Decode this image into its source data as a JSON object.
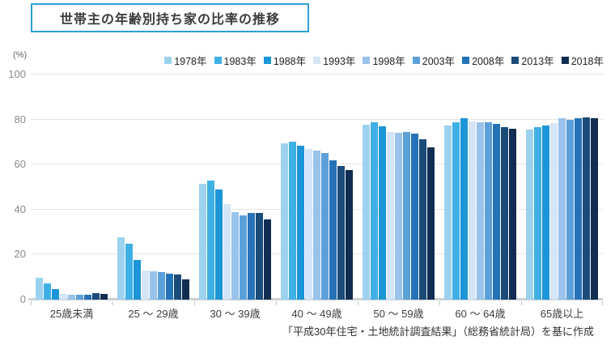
{
  "header": {
    "title": "世帯主の年齢別持ち家の比率の推移"
  },
  "axis": {
    "unit_label": "(%)"
  },
  "footer": {
    "source_text": "「平成30年住宅・土地統計調査結果」（総務省統計局）を基に作成"
  },
  "colors": {
    "title_border": "#2e9fd9",
    "gridline": "#e4e4e4",
    "axis_line": "#ccd1d6",
    "tick_label": "#8a8a8a",
    "text": "#333333"
  },
  "chart_data": {
    "type": "bar",
    "title": "世帯主の年齢別持ち家の比率の推移",
    "xlabel": "",
    "ylabel": "(%)",
    "ylim": [
      0,
      100
    ],
    "yticks": [
      0,
      20,
      40,
      60,
      80,
      100
    ],
    "grid": true,
    "legend_position": "top-right",
    "categories": [
      "25歳未満",
      "25 ～ 29歳",
      "30 ～ 39歳",
      "40 ～ 49歳",
      "50 ～ 59歳",
      "60 ～ 64歳",
      "65歳以上"
    ],
    "series": [
      {
        "name": "1978年",
        "color": "#9dd2ef",
        "values": [
          9.6,
          27.6,
          51.5,
          69.5,
          77.8,
          77.5,
          75.7
        ]
      },
      {
        "name": "1983年",
        "color": "#3fb0e5",
        "values": [
          7.2,
          25.0,
          53.0,
          70.0,
          78.8,
          78.7,
          76.5
        ]
      },
      {
        "name": "1988年",
        "color": "#1b96d8",
        "values": [
          4.8,
          17.7,
          49.0,
          68.3,
          77.0,
          80.7,
          77.2
        ]
      },
      {
        "name": "1993年",
        "color": "#d4e5f7",
        "values": [
          2.4,
          13.0,
          42.5,
          66.8,
          74.6,
          79.3,
          78.4
        ]
      },
      {
        "name": "1998年",
        "color": "#99c3ea",
        "values": [
          2.2,
          12.6,
          39.0,
          66.3,
          74.2,
          78.7,
          80.7
        ]
      },
      {
        "name": "2003年",
        "color": "#5ca0da",
        "values": [
          2.0,
          12.4,
          37.5,
          65.0,
          74.6,
          78.9,
          80.0
        ]
      },
      {
        "name": "2008年",
        "color": "#2672b6",
        "values": [
          2.0,
          11.4,
          38.5,
          62.0,
          73.7,
          78.1,
          80.5
        ]
      },
      {
        "name": "2013年",
        "color": "#1b4b79",
        "values": [
          3.0,
          11.2,
          38.5,
          59.5,
          71.2,
          76.6,
          81.1
        ]
      },
      {
        "name": "2018年",
        "color": "#112d51",
        "values": [
          2.5,
          9.0,
          35.5,
          57.5,
          67.5,
          75.9,
          80.7
        ]
      }
    ]
  }
}
